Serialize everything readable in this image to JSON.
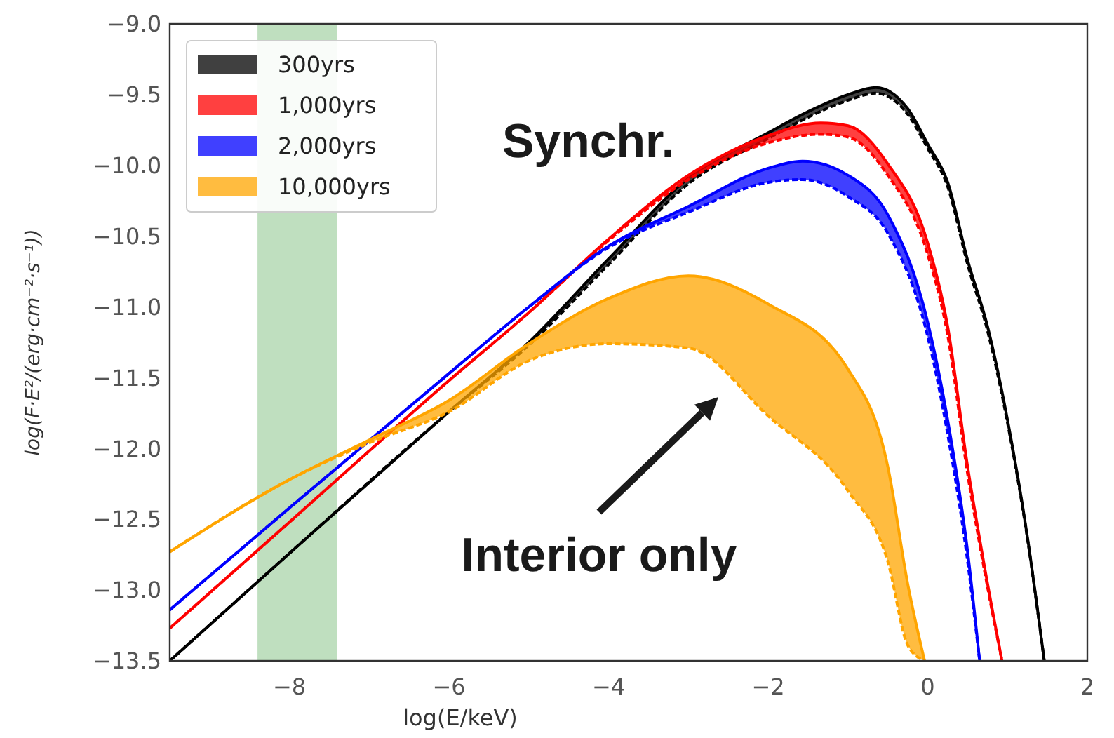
{
  "chart_data": {
    "type": "line",
    "xlabel": "log(E/keV)",
    "ylabel": "log(F·E²/(erg·cm⁻²·s⁻¹))",
    "xlim": [
      -9.5,
      2
    ],
    "ylim": [
      -13.5,
      -9
    ],
    "xticks": [
      {
        "value": -8,
        "label": "−8"
      },
      {
        "value": -6,
        "label": "−6"
      },
      {
        "value": -4,
        "label": "−4"
      },
      {
        "value": -2,
        "label": "−2"
      },
      0,
      2
    ],
    "yticks": [
      {
        "value": -13.5,
        "label": "−13.5"
      },
      {
        "value": -13,
        "label": "−13.0"
      },
      {
        "value": -12.5,
        "label": "−12.5"
      },
      {
        "value": -12,
        "label": "−12.0"
      },
      {
        "value": -11.5,
        "label": "−11.5"
      },
      {
        "value": -11,
        "label": "−11.0"
      },
      {
        "value": -10.5,
        "label": "−10.5"
      },
      {
        "value": -10,
        "label": "−10.0"
      },
      {
        "value": -9.5,
        "label": "−9.5"
      },
      {
        "value": -9,
        "label": "−9.0"
      }
    ],
    "grid": false,
    "legend": "top left",
    "line_style": "solid",
    "bands": [
      {
        "axis": "x",
        "from": -8.4,
        "to": -7.4,
        "color": "#bfdfbf"
      }
    ],
    "annotations": [
      "Synchr.",
      "Interior only"
    ],
    "series": [
      {
        "name": "300yrs",
        "color": "#000000",
        "x": [
          -9.5,
          -8,
          -6,
          -5,
          -4,
          -3,
          -2,
          -1.5,
          -1,
          -0.65,
          -0.25,
          0,
          0.25,
          0.5,
          0.75,
          1,
          1.25,
          1.46
        ],
        "values": [
          -13.5,
          -12.74,
          -11.74,
          -11.25,
          -10.66,
          -10.09,
          -9.77,
          -9.62,
          -9.5,
          -9.45,
          -9.6,
          -9.85,
          -10.12,
          -10.67,
          -11.14,
          -11.8,
          -12.63,
          -13.5
        ],
        "upper": [
          -13.5,
          -12.74,
          -11.74,
          -11.25,
          -10.66,
          -10.09,
          -9.77,
          -9.62,
          -9.5,
          -9.45,
          -9.6,
          -9.85,
          -10.12,
          -10.67,
          -11.14,
          -11.8,
          -12.63,
          -13.5
        ],
        "lower": [
          -13.5,
          -12.74,
          -11.74,
          -11.27,
          -10.7,
          -10.13,
          -9.81,
          -9.66,
          -9.54,
          -9.49,
          -9.64,
          -9.88,
          -10.15,
          -10.7,
          -11.17,
          -11.82,
          -12.64,
          -13.5
        ]
      },
      {
        "color": "#000000",
        "line_style": "dashed",
        "x": [
          -9.5,
          -8,
          -6,
          -5,
          -4,
          -3,
          -2,
          -1.5,
          -1,
          -0.65,
          -0.25,
          0,
          0.25,
          0.5,
          0.75,
          1,
          1.25,
          1.46
        ],
        "values": [
          -13.5,
          -12.74,
          -11.74,
          -11.27,
          -10.7,
          -10.13,
          -9.81,
          -9.66,
          -9.54,
          -9.49,
          -9.64,
          -9.88,
          -10.15,
          -10.7,
          -11.17,
          -11.82,
          -12.64,
          -13.5
        ]
      },
      {
        "name": "1,000yrs",
        "color": "#ff0000",
        "x": [
          -9.5,
          -8,
          -6,
          -5,
          -4,
          -3,
          -2,
          -1.34,
          -1,
          -0.5,
          0,
          0.25,
          0.5,
          0.7,
          0.93
        ],
        "values": [
          -13.27,
          -12.52,
          -11.52,
          -11.04,
          -10.52,
          -10.07,
          -9.79,
          -9.7,
          -9.72,
          -9.99,
          -10.55,
          -11.14,
          -12.13,
          -12.8,
          -13.5
        ],
        "upper": [
          -13.27,
          -12.52,
          -11.52,
          -11.04,
          -10.52,
          -10.07,
          -9.79,
          -9.7,
          -9.72,
          -9.99,
          -10.55,
          -11.14,
          -12.13,
          -12.8,
          -13.5
        ],
        "lower": [
          -13.27,
          -12.52,
          -11.52,
          -11.04,
          -10.53,
          -10.1,
          -9.84,
          -9.78,
          -9.8,
          -10.07,
          -10.63,
          -11.2,
          -12.18,
          -12.83,
          -13.5
        ]
      },
      {
        "color": "#ff0000",
        "line_style": "dashed",
        "x": [
          -9.5,
          -8,
          -6,
          -5,
          -4,
          -3,
          -2,
          -1.34,
          -1,
          -0.5,
          0,
          0.25,
          0.5,
          0.7,
          0.93
        ],
        "values": [
          -13.27,
          -12.52,
          -11.52,
          -11.04,
          -10.53,
          -10.1,
          -9.84,
          -9.78,
          -9.8,
          -10.07,
          -10.63,
          -11.2,
          -12.18,
          -12.83,
          -13.5
        ]
      },
      {
        "name": "2,000yrs",
        "color": "#0000ff",
        "x": [
          -9.5,
          -8,
          -6,
          -5,
          -4,
          -3,
          -2,
          -1.57,
          -1,
          -0.5,
          0,
          0.25,
          0.5,
          0.65
        ],
        "values": [
          -13.14,
          -12.42,
          -11.47,
          -11.0,
          -10.57,
          -10.29,
          -10.02,
          -9.97,
          -10.07,
          -10.35,
          -11.11,
          -11.8,
          -12.73,
          -13.5
        ],
        "upper": [
          -13.14,
          -12.42,
          -11.47,
          -11.0,
          -10.57,
          -10.29,
          -10.02,
          -9.97,
          -10.07,
          -10.35,
          -11.11,
          -11.8,
          -12.73,
          -13.5
        ],
        "lower": [
          -13.14,
          -12.42,
          -11.47,
          -11.0,
          -10.58,
          -10.33,
          -10.12,
          -10.1,
          -10.22,
          -10.48,
          -11.21,
          -11.9,
          -12.8,
          -13.5
        ]
      },
      {
        "color": "#0000ff",
        "line_style": "dashed",
        "x": [
          -9.5,
          -8,
          -6,
          -5,
          -4,
          -3,
          -2,
          -1.57,
          -1,
          -0.5,
          0,
          0.25,
          0.5,
          0.65
        ],
        "values": [
          -13.14,
          -12.42,
          -11.47,
          -11.0,
          -10.58,
          -10.33,
          -10.12,
          -10.1,
          -10.22,
          -10.48,
          -11.21,
          -11.9,
          -12.8,
          -13.5
        ]
      },
      {
        "name": "10,000yrs",
        "color": "#ffa500",
        "x": [
          -9.5,
          -8,
          -7,
          -6,
          -5,
          -4,
          -3,
          -2,
          -1,
          -0.5,
          -0.25,
          -0.04
        ],
        "values": [
          -12.73,
          -12.22,
          -11.94,
          -11.66,
          -11.26,
          -10.94,
          -10.78,
          -10.98,
          -11.44,
          -12.13,
          -12.96,
          -13.5
        ],
        "upper": [
          -12.73,
          -12.22,
          -11.94,
          -11.66,
          -11.26,
          -10.94,
          -10.78,
          -10.98,
          -11.44,
          -12.13,
          -12.96,
          -13.5
        ],
        "lower": [
          -12.73,
          -12.22,
          -11.96,
          -11.74,
          -11.38,
          -11.26,
          -11.29,
          -11.77,
          -12.3,
          -12.8,
          -13.39,
          -13.5
        ]
      },
      {
        "color": "#ffa500",
        "line_style": "dashed",
        "x": [
          -9.5,
          -8,
          -7,
          -6,
          -5,
          -4,
          -3,
          -2,
          -1,
          -0.5,
          -0.25,
          -0.04
        ],
        "values": [
          -12.73,
          -12.22,
          -11.96,
          -11.74,
          -11.38,
          -11.26,
          -11.29,
          -11.77,
          -12.3,
          -12.8,
          -13.39,
          -13.5
        ]
      }
    ]
  }
}
